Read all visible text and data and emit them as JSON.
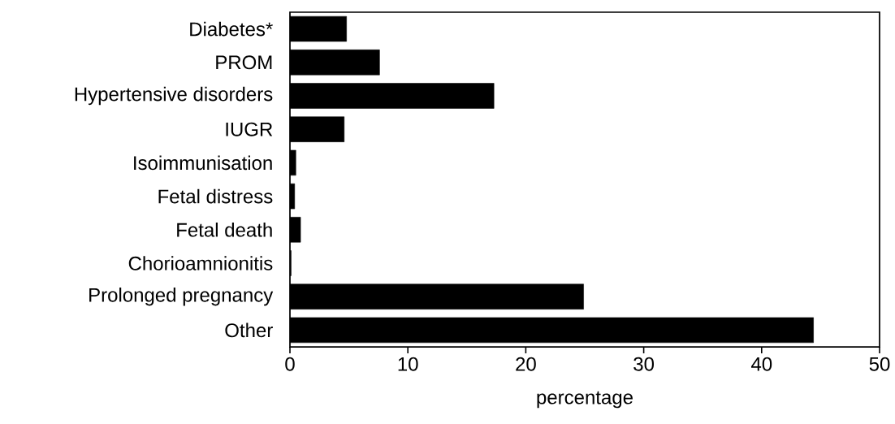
{
  "chart_data": {
    "type": "bar",
    "orientation": "horizontal",
    "xlabel": "percentage",
    "categories": [
      "Diabetes*",
      "PROM",
      "Hypertensive disorders",
      "IUGR",
      "Isoimmunisation",
      "Fetal distress",
      "Fetal death",
      "Chorioamnionitis",
      "Prolonged pregnancy",
      "Other"
    ],
    "values": [
      4.8,
      7.6,
      17.3,
      4.6,
      0.5,
      0.4,
      0.9,
      0.1,
      24.9,
      44.4
    ],
    "color": "#000000",
    "xlim": [
      0,
      50
    ],
    "xticks": [
      0,
      10,
      20,
      30,
      40,
      50
    ]
  }
}
